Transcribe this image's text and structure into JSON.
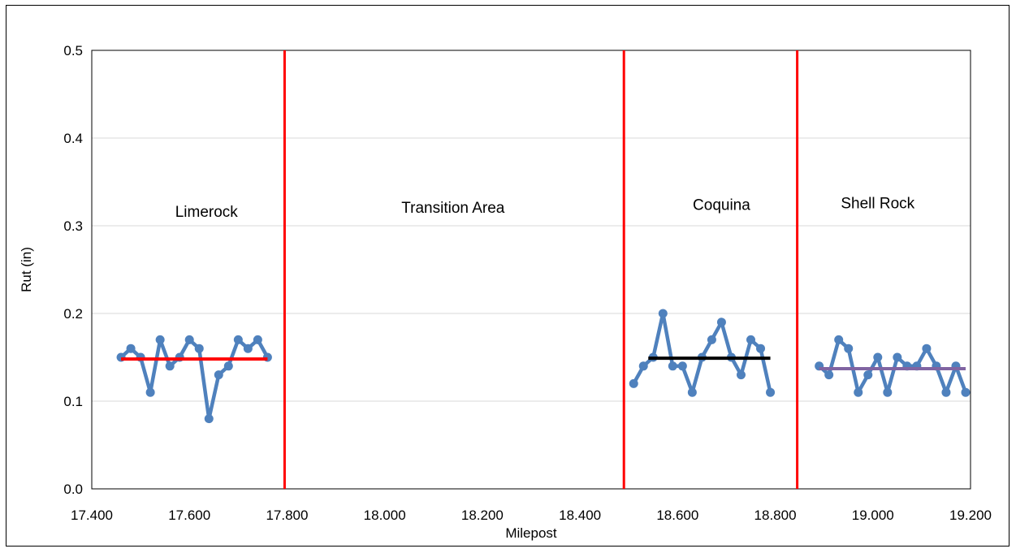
{
  "chart_data": {
    "type": "line",
    "title": "",
    "xlabel": "Milepost",
    "ylabel": "Rut (in)",
    "xlim": [
      17.4,
      19.2
    ],
    "ylim": [
      0.0,
      0.5
    ],
    "grid": true,
    "x_ticks": [
      "17.400",
      "17.600",
      "17.800",
      "18.000",
      "18.200",
      "18.400",
      "18.600",
      "18.800",
      "19.000",
      "19.200"
    ],
    "x_tick_values": [
      17.4,
      17.6,
      17.8,
      18.0,
      18.2,
      18.4,
      18.6,
      18.8,
      19.0,
      19.2
    ],
    "y_ticks": [
      "0.0",
      "0.1",
      "0.2",
      "0.3",
      "0.4",
      "0.5"
    ],
    "y_tick_values": [
      0.0,
      0.1,
      0.2,
      0.3,
      0.4,
      0.5
    ],
    "series": [
      {
        "color": "#4f81bd",
        "segments": [
          {
            "x": [
              17.46,
              17.48,
              17.5,
              17.52,
              17.54,
              17.56,
              17.58,
              17.6,
              17.62,
              17.64,
              17.66,
              17.68,
              17.7,
              17.72,
              17.74,
              17.76
            ],
            "y": [
              0.15,
              0.16,
              0.15,
              0.11,
              0.17,
              0.14,
              0.15,
              0.17,
              0.16,
              0.08,
              0.13,
              0.14,
              0.17,
              0.16,
              0.17,
              0.15
            ]
          },
          {
            "x": [
              18.51,
              18.53,
              18.55,
              18.57,
              18.59,
              18.61,
              18.63,
              18.65,
              18.67,
              18.69,
              18.71,
              18.73,
              18.75,
              18.77,
              18.79
            ],
            "y": [
              0.12,
              0.14,
              0.15,
              0.2,
              0.14,
              0.14,
              0.11,
              0.15,
              0.17,
              0.19,
              0.15,
              0.13,
              0.17,
              0.16,
              0.11
            ]
          },
          {
            "x": [
              18.89,
              18.91,
              18.93,
              18.95,
              18.97,
              18.99,
              19.01,
              19.03,
              19.05,
              19.07,
              19.09,
              19.11,
              19.13,
              19.15,
              19.17,
              19.19
            ],
            "y": [
              0.14,
              0.13,
              0.17,
              0.16,
              0.11,
              0.13,
              0.15,
              0.11,
              0.15,
              0.14,
              0.14,
              0.16,
              0.14,
              0.11,
              0.14,
              0.11
            ]
          }
        ]
      }
    ],
    "average_lines": [
      {
        "x": [
          17.46,
          17.76
        ],
        "y": 0.148,
        "color": "#ff0000"
      },
      {
        "x": [
          18.54,
          18.79
        ],
        "y": 0.149,
        "color": "#000000"
      },
      {
        "x": [
          18.89,
          19.19
        ],
        "y": 0.137,
        "color": "#8064a2"
      }
    ],
    "boundaries": [
      {
        "x": 17.795,
        "color": "#ff0000"
      },
      {
        "x": 18.49,
        "color": "#ff0000"
      },
      {
        "x": 18.845,
        "color": "#ff0000"
      }
    ],
    "regions": [
      {
        "label": "Limerock",
        "x": 17.635,
        "y": 0.31
      },
      {
        "label": "Transition Area",
        "x": 18.14,
        "y": 0.315
      },
      {
        "label": "Coquina",
        "x": 18.69,
        "y": 0.318
      },
      {
        "label": "Shell Rock",
        "x": 19.01,
        "y": 0.32
      }
    ]
  }
}
